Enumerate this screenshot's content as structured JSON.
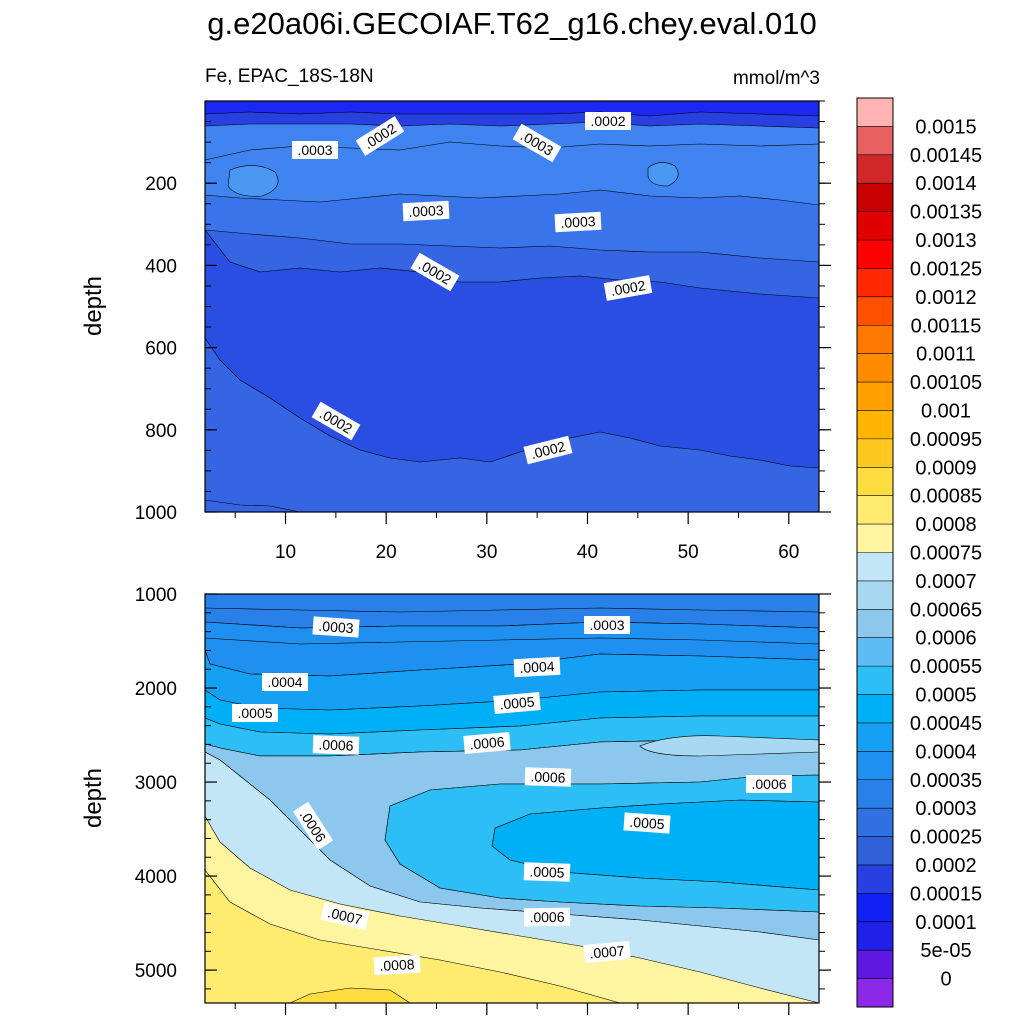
{
  "chart_data": {
    "type": "heatmap",
    "title": "g.e20a06i.GECOIAF.T62_g16.chey.eval.010",
    "variable": "Fe, EPAC_18S-18N",
    "units": "mmol/m^3",
    "panels": [
      {
        "name": "upper",
        "ylabel": "depth",
        "ylim": [
          1000,
          0
        ],
        "xlim": [
          2,
          63
        ],
        "x_ticks": [
          10,
          20,
          30,
          40,
          50,
          60
        ],
        "y_ticks": [
          200,
          400,
          600,
          800,
          1000
        ],
        "contour_labels": [
          ".0003",
          ".0002",
          ".0003",
          ".0002",
          ".0003",
          ".0003",
          ".0002",
          ".0002",
          ".0002",
          ".0002"
        ]
      },
      {
        "name": "lower",
        "ylabel": "depth",
        "ylim": [
          5350,
          1000
        ],
        "xlim": [
          2,
          63
        ],
        "y_ticks": [
          1000,
          2000,
          3000,
          4000,
          5000
        ],
        "contour_labels": [
          ".0003",
          ".0003",
          ".0004",
          ".0004",
          ".0005",
          ".0005",
          ".0006",
          ".0006",
          ".0006",
          ".0006",
          ".0006",
          ".0005",
          ".0005",
          ".0007",
          ".0006",
          ".0008",
          ".0007"
        ]
      }
    ],
    "colorbar": {
      "levels": [
        "0.0015",
        "0.00145",
        "0.0014",
        "0.00135",
        "0.0013",
        "0.00125",
        "0.0012",
        "0.00115",
        "0.0011",
        "0.00105",
        "0.001",
        "0.00095",
        "0.0009",
        "0.00085",
        "0.0008",
        "0.00075",
        "0.0007",
        "0.00065",
        "0.0006",
        "0.00055",
        "0.0005",
        "0.00045",
        "0.0004",
        "0.00035",
        "0.0003",
        "0.00025",
        "0.0002",
        "0.00015",
        "0.0001",
        "5e-05",
        "0"
      ],
      "colors": [
        "#FFB4B4",
        "#E86060",
        "#D02828",
        "#C80000",
        "#E00000",
        "#FF0000",
        "#FF2800",
        "#FF5000",
        "#FF7800",
        "#FF8C00",
        "#FFA000",
        "#FFB400",
        "#FFC820",
        "#FFDC40",
        "#FFEB70",
        "#FFF5A0",
        "#C2E6F6",
        "#A8D8F2",
        "#8CC8EE",
        "#5EBCF5",
        "#2EBEF6",
        "#00B0F6",
        "#16A0F4",
        "#2090F0",
        "#2880E8",
        "#3070E0",
        "#3060D8",
        "#2840E0",
        "#1020F0",
        "#2020E8",
        "#5E18E0",
        "#8C28E8"
      ]
    }
  }
}
